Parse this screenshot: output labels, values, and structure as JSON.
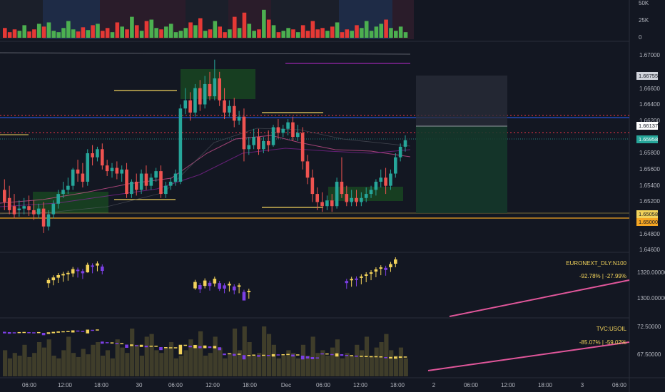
{
  "colors": {
    "background": "#131722",
    "grid": "#1e222d",
    "up": "#26a69a",
    "down": "#ef5350",
    "vol_up": "#4caf50",
    "vol_down": "#e53935",
    "yellow": "#f2d35b",
    "orange": "#f5a623",
    "magenta": "#e0569a",
    "purple": "#7b3fe4",
    "blue": "#2962ff",
    "red_dotted": "#f23645",
    "zone_green": "#1b5e20",
    "target_green": "#153a2a",
    "stop_gray": "#2a2e39"
  },
  "volume_axis": {
    "ticks": [
      "50K",
      "25K",
      "0"
    ]
  },
  "price_axis": {
    "ticks": [
      "1.67000",
      "1.66600",
      "1.66400",
      "1.66200",
      "1.65800",
      "1.65600",
      "1.65400",
      "1.65200",
      "1.64800",
      "1.64600"
    ],
    "badges": [
      {
        "label": "1.66755",
        "bg": "#d1d4dc",
        "fg": "#131722"
      },
      {
        "label": "1.66137",
        "bg": "#ffffff",
        "fg": "#131722"
      },
      {
        "label": "1.65958",
        "bg": "#26a69a",
        "fg": "#ffffff"
      },
      {
        "label": "1.65058",
        "bg": "#f2d35b",
        "fg": "#131722"
      },
      {
        "label": "1.65000",
        "bg": "#f5a623",
        "fg": "#131722"
      }
    ]
  },
  "pane_nav": {
    "label": "EURONEXT_DLY:N100",
    "stats": "-92.78% | -27.99%",
    "ticks": [
      "1320.00000",
      "1300.00000"
    ]
  },
  "pane_oil": {
    "label": "TVC:USOIL",
    "stats": "-85.07% | -59.02%",
    "ticks": [
      "72.50000",
      "67.50000"
    ]
  },
  "time_axis": {
    "ticks": [
      "06:00",
      "12:00",
      "18:00",
      "30",
      "06:00",
      "12:00",
      "18:00",
      "Dec",
      "06:00",
      "12:00",
      "18:00",
      "2",
      "06:00",
      "12:00",
      "18:00",
      "3",
      "06:00"
    ]
  },
  "chart_data": {
    "type": "candlestick",
    "candles": [
      [
        1.6535,
        1.6548,
        1.652,
        1.651
      ],
      [
        1.6525,
        1.654,
        1.651,
        1.6505
      ],
      [
        1.6515,
        1.653,
        1.6505,
        1.65
      ],
      [
        1.651,
        1.6522,
        1.6512,
        1.6502
      ],
      [
        1.6512,
        1.6525,
        1.6515,
        1.6505
      ],
      [
        1.6515,
        1.6528,
        1.651,
        1.6503
      ],
      [
        1.651,
        1.6522,
        1.6505,
        1.6498
      ],
      [
        1.6505,
        1.6518,
        1.6512,
        1.65
      ],
      [
        1.6512,
        1.652,
        1.649,
        1.6482
      ],
      [
        1.649,
        1.651,
        1.6505,
        1.6485
      ],
      [
        1.6505,
        1.6522,
        1.6518,
        1.65
      ],
      [
        1.6518,
        1.6535,
        1.653,
        1.6512
      ],
      [
        1.653,
        1.6545,
        1.6535,
        1.6525
      ],
      [
        1.6535,
        1.655,
        1.654,
        1.653
      ],
      [
        1.654,
        1.6562,
        1.656,
        1.6535
      ],
      [
        1.656,
        1.6572,
        1.6555,
        1.6545
      ],
      [
        1.6555,
        1.6568,
        1.6545,
        1.6538
      ],
      [
        1.6545,
        1.6585,
        1.658,
        1.654
      ],
      [
        1.658,
        1.659,
        1.6575,
        1.6565
      ],
      [
        1.6575,
        1.6588,
        1.6585,
        1.657
      ],
      [
        1.6585,
        1.6592,
        1.6565,
        1.656
      ],
      [
        1.6565,
        1.6572,
        1.6558,
        1.6552
      ],
      [
        1.6558,
        1.6568,
        1.6562,
        1.655
      ],
      [
        1.6562,
        1.657,
        1.6555,
        1.6548
      ],
      [
        1.6555,
        1.6565,
        1.656,
        1.6545
      ],
      [
        1.656,
        1.6568,
        1.653,
        1.6525
      ],
      [
        1.653,
        1.6548,
        1.6545,
        1.6525
      ],
      [
        1.6545,
        1.6555,
        1.6535,
        1.6528
      ],
      [
        1.6535,
        1.656,
        1.6555,
        1.653
      ],
      [
        1.6555,
        1.6565,
        1.654,
        1.6535
      ],
      [
        1.654,
        1.6555,
        1.655,
        1.6535
      ],
      [
        1.655,
        1.6562,
        1.6558,
        1.6545
      ],
      [
        1.6558,
        1.6565,
        1.653,
        1.6525
      ],
      [
        1.653,
        1.6545,
        1.654,
        1.6525
      ],
      [
        1.654,
        1.655,
        1.6545,
        1.6535
      ],
      [
        1.6545,
        1.656,
        1.6555,
        1.654
      ],
      [
        1.6545,
        1.664,
        1.6635,
        1.6542
      ],
      [
        1.6635,
        1.666,
        1.6645,
        1.6628
      ],
      [
        1.6645,
        1.6655,
        1.663,
        1.662
      ],
      [
        1.663,
        1.6665,
        1.666,
        1.6625
      ],
      [
        1.666,
        1.667,
        1.664,
        1.6632
      ],
      [
        1.664,
        1.6675,
        1.6665,
        1.6635
      ],
      [
        1.6665,
        1.668,
        1.665,
        1.6645
      ],
      [
        1.665,
        1.6695,
        1.6672,
        1.6645
      ],
      [
        1.6672,
        1.668,
        1.6645,
        1.6638
      ],
      [
        1.6645,
        1.666,
        1.663,
        1.6622
      ],
      [
        1.663,
        1.6645,
        1.6638,
        1.6625
      ],
      [
        1.6638,
        1.6648,
        1.662,
        1.6612
      ],
      [
        1.662,
        1.6632,
        1.6625,
        1.6615
      ],
      [
        1.6625,
        1.6635,
        1.6585,
        1.657
      ],
      [
        1.6585,
        1.66,
        1.659,
        1.6578
      ],
      [
        1.659,
        1.661,
        1.66,
        1.6585
      ],
      [
        1.66,
        1.661,
        1.6585,
        1.6578
      ],
      [
        1.6585,
        1.66,
        1.6595,
        1.658
      ],
      [
        1.6595,
        1.6608,
        1.659,
        1.6582
      ],
      [
        1.659,
        1.6615,
        1.6612,
        1.6588
      ],
      [
        1.6612,
        1.6622,
        1.6605,
        1.6598
      ],
      [
        1.6605,
        1.6615,
        1.661,
        1.66
      ],
      [
        1.661,
        1.6622,
        1.6618,
        1.6602
      ],
      [
        1.6618,
        1.6625,
        1.66,
        1.6595
      ],
      [
        1.66,
        1.6615,
        1.6605,
        1.6595
      ],
      [
        1.6605,
        1.6612,
        1.657,
        1.656
      ],
      [
        1.657,
        1.6578,
        1.655,
        1.6542
      ],
      [
        1.655,
        1.656,
        1.653,
        1.652
      ],
      [
        1.653,
        1.6538,
        1.652,
        1.651
      ],
      [
        1.652,
        1.6532,
        1.6515,
        1.6508
      ],
      [
        1.6515,
        1.6528,
        1.6522,
        1.651
      ],
      [
        1.6522,
        1.653,
        1.6515,
        1.6508
      ],
      [
        1.6515,
        1.655,
        1.6545,
        1.6512
      ],
      [
        1.6545,
        1.6575,
        1.653,
        1.6525
      ],
      [
        1.653,
        1.654,
        1.652,
        1.6515
      ],
      [
        1.652,
        1.6535,
        1.6525,
        1.6515
      ],
      [
        1.6525,
        1.6535,
        1.652,
        1.6515
      ],
      [
        1.652,
        1.6532,
        1.6525,
        1.6515
      ],
      [
        1.6525,
        1.6538,
        1.653,
        1.652
      ],
      [
        1.653,
        1.654,
        1.6535,
        1.6525
      ],
      [
        1.6535,
        1.6548,
        1.6545,
        1.6528
      ],
      [
        1.6545,
        1.656,
        1.655,
        1.6538
      ],
      [
        1.655,
        1.6562,
        1.654,
        1.653
      ],
      [
        1.654,
        1.656,
        1.6555,
        1.6535
      ],
      [
        1.6555,
        1.658,
        1.6575,
        1.655
      ],
      [
        1.6575,
        1.6592,
        1.6588,
        1.657
      ],
      [
        1.6588,
        1.6602,
        1.6596,
        1.6582
      ]
    ],
    "volume": [
      14,
      8,
      12,
      10,
      18,
      9,
      12,
      20,
      16,
      22,
      10,
      8,
      14,
      24,
      12,
      9,
      15,
      11,
      18,
      20,
      10,
      14,
      8,
      22,
      16,
      12,
      30,
      18,
      10,
      24,
      26,
      14,
      12,
      16,
      20,
      8,
      10,
      14,
      22,
      18,
      28,
      10,
      12,
      24,
      16,
      8,
      12,
      30,
      14,
      36,
      20,
      10,
      12,
      40,
      26,
      18,
      8,
      10,
      14,
      12,
      8,
      18,
      10,
      24,
      12,
      14,
      10,
      16,
      22,
      8,
      12,
      10,
      18,
      14,
      24,
      10,
      16,
      20,
      26,
      14,
      10,
      16,
      8
    ]
  }
}
